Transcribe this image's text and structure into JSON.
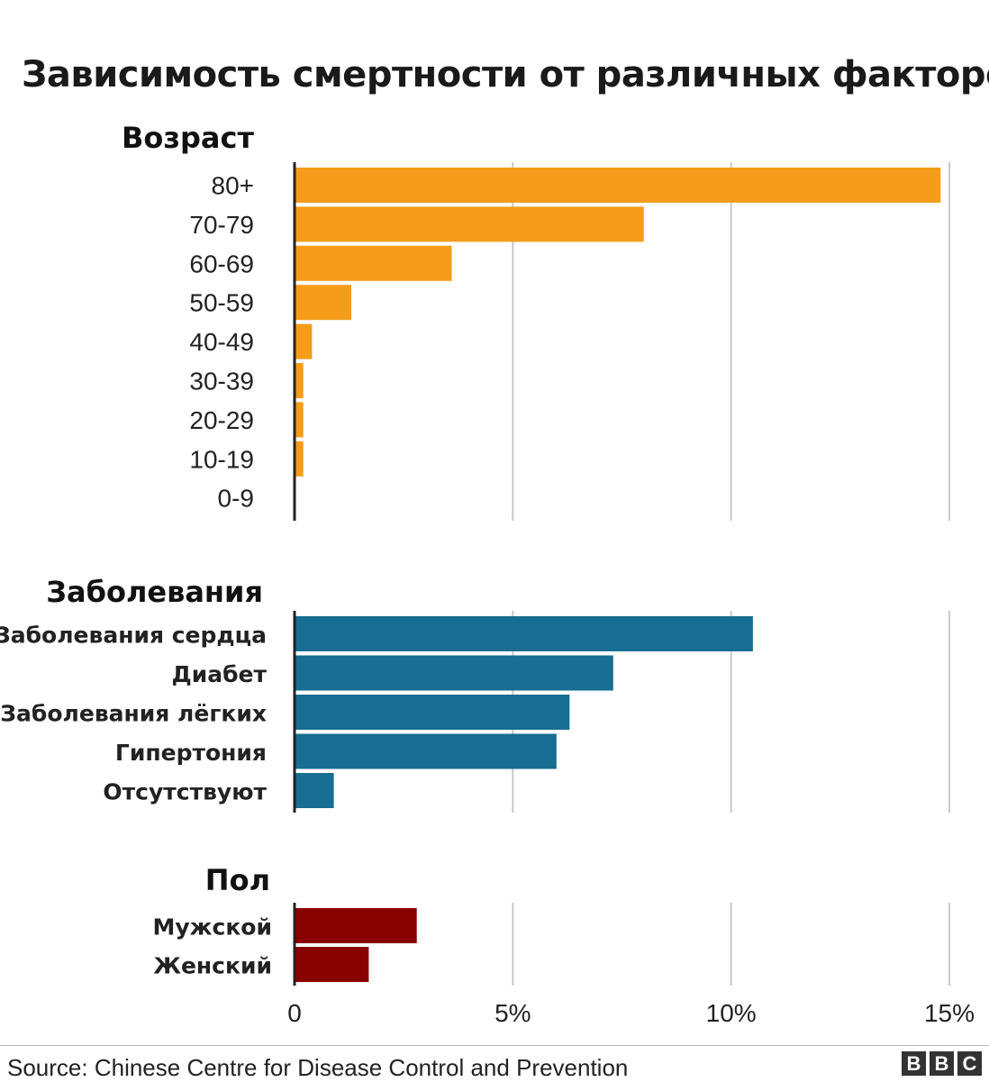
{
  "chart_data": {
    "type": "bar",
    "orientation": "horizontal",
    "title": "Зависимость смертности от различных факторов",
    "x_ticks": [
      "0",
      "5%",
      "10%",
      "15%"
    ],
    "xlim": [
      0,
      15
    ],
    "x_unit": "%",
    "grid": true,
    "groups": [
      {
        "name": "Возраст",
        "color": "#f59c1a",
        "categories": [
          "80+",
          "70-79",
          "60-69",
          "50-59",
          "40-49",
          "30-39",
          "20-29",
          "10-19",
          "0-9"
        ],
        "values": [
          14.8,
          8.0,
          3.6,
          1.3,
          0.4,
          0.2,
          0.2,
          0.2,
          0.0
        ]
      },
      {
        "name": "Заболевания",
        "color": "#176d92",
        "categories": [
          "Заболевания сердца",
          "Диабет",
          "Заболевания лёгких",
          "Гипертония",
          "Отсутствуют"
        ],
        "values": [
          10.5,
          7.3,
          6.3,
          6.0,
          0.9
        ]
      },
      {
        "name": "Пол",
        "color": "#880000",
        "categories": [
          "Мужской",
          "Женский"
        ],
        "values": [
          2.8,
          1.7
        ]
      }
    ]
  },
  "footer": {
    "source": "Source: Chinese Centre for Disease Control and Prevention",
    "logo": [
      "B",
      "B",
      "C"
    ]
  }
}
